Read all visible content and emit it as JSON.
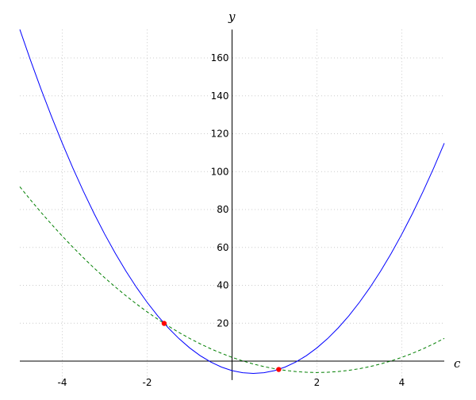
{
  "chart_data": {
    "type": "line",
    "x_label": "c",
    "y_label": "y",
    "xlim": [
      -5,
      5
    ],
    "ylim": [
      -10,
      175
    ],
    "xticks": [
      -4,
      -2,
      2,
      4
    ],
    "yticks": [
      20,
      40,
      60,
      80,
      100,
      120,
      140,
      160
    ],
    "grid": true,
    "x": [
      -5,
      -4.75,
      -4.5,
      -4.25,
      -4,
      -3.75,
      -3.5,
      -3.25,
      -3,
      -2.75,
      -2.5,
      -2.25,
      -2,
      -1.75,
      -1.5,
      -1.25,
      -1,
      -0.75,
      -0.5,
      -0.25,
      0,
      0.25,
      0.5,
      0.75,
      1,
      1.25,
      1.5,
      1.75,
      2,
      2.25,
      2.5,
      2.75,
      3,
      3.25,
      3.5,
      3.75,
      4,
      4.25,
      4.5,
      4.75,
      5
    ],
    "series": [
      {
        "color": "#0000ff",
        "linestyle": "solid",
        "values": [
          175,
          158.875,
          143.5,
          128.875,
          115,
          101.875,
          89.5,
          77.875,
          67,
          56.875,
          47.5,
          38.875,
          31,
          23.875,
          17.5,
          11.875,
          7,
          2.875,
          -0.5,
          -3.125,
          -5,
          -6.125,
          -6.5,
          -6.125,
          -5,
          -3.125,
          -0.5,
          2.875,
          7,
          11.875,
          17.5,
          23.875,
          31,
          38.875,
          47.5,
          56.875,
          67,
          77.875,
          89.5,
          101.875,
          115
        ]
      },
      {
        "color": "#007f00",
        "linestyle": "dashed",
        "values": [
          92,
          85.125,
          78.5,
          72.125,
          66,
          60.125,
          54.5,
          49.125,
          44,
          39.125,
          34.5,
          30.125,
          26,
          22.125,
          18.5,
          15.125,
          12,
          9.125,
          6.5,
          4.125,
          2,
          0.125,
          -1.5,
          -2.875,
          -4,
          -4.875,
          -5.5,
          -5.875,
          -6,
          -5.875,
          -5.5,
          -4.875,
          -4,
          -2.875,
          -1.5,
          0.125,
          2,
          4.125,
          6.5,
          9.125,
          12
        ]
      }
    ],
    "points": {
      "color": "#ff0000",
      "x": [
        -1.6,
        1.1
      ],
      "values": [
        19.9,
        -4.4
      ]
    }
  }
}
